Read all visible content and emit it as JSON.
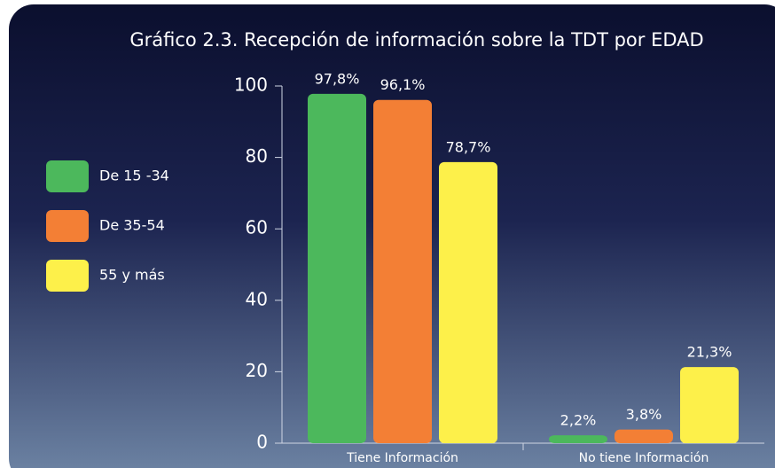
{
  "chart_data": {
    "type": "bar",
    "title": "Gráfico 2.3. Recepción de información sobre la TDT por EDAD",
    "categories": [
      "Tiene Información",
      "No tiene Información"
    ],
    "series": [
      {
        "name": "De 15 -34",
        "color": "#4cb85c",
        "values": [
          97.8,
          2.2
        ],
        "value_labels": [
          "97,8%",
          "2,2%"
        ]
      },
      {
        "name": "De 35-54",
        "color": "#f37f35",
        "values": [
          96.1,
          3.8
        ],
        "value_labels": [
          "96,1%",
          "3,8%"
        ]
      },
      {
        "name": "55 y más",
        "color": "#fdf04a",
        "values": [
          78.7,
          21.3
        ],
        "value_labels": [
          "78,7%",
          "21,3%"
        ]
      }
    ],
    "ylim": [
      0,
      100
    ],
    "yticks": [
      0,
      20,
      40,
      60,
      80,
      100
    ],
    "legend": "left"
  }
}
